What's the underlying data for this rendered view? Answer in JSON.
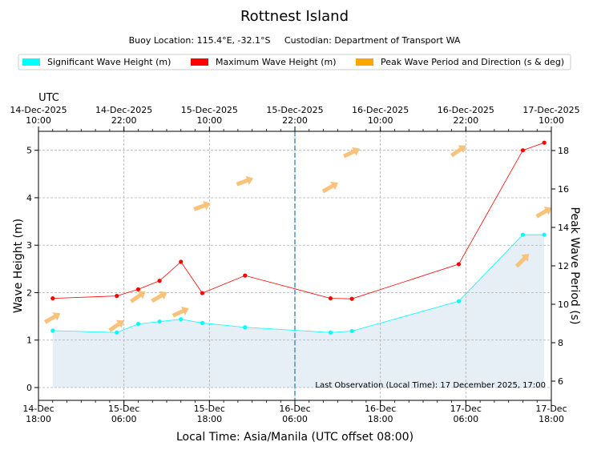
{
  "chart_data": {
    "type": "line",
    "title": "Rottnest Island",
    "subtitle": "Buoy Location: 115.4°E, -32.1°S     Custodian: Department of Transport WA",
    "legend": {
      "placement": "top",
      "entries": [
        {
          "label": "Significant Wave Height (m)",
          "color": "#00ffff"
        },
        {
          "label": "Maximum Wave Height (m)",
          "color": "#ff0000"
        },
        {
          "label": "Peak Wave Period and Direction (s & deg)",
          "color": "#ffa500"
        }
      ]
    },
    "xlabel": "Local Time: Asia/Manila (UTC offset 08:00)",
    "ylabel": "Wave Height (m)",
    "y2label": "Peak Wave Period (s)",
    "top_axis_label": "UTC",
    "ylim": [
      -0.27,
      5.4
    ],
    "y2lim": [
      5.0,
      19.0
    ],
    "x_range_hours": [
      0,
      72
    ],
    "yticks": [
      0,
      1,
      2,
      3,
      4,
      5
    ],
    "y2ticks": [
      6,
      8,
      10,
      12,
      14,
      16,
      18
    ],
    "xticks": [
      {
        "t": 0,
        "label": "14-Dec\n18:00"
      },
      {
        "t": 12,
        "label": "15-Dec\n06:00"
      },
      {
        "t": 24,
        "label": "15-Dec\n18:00"
      },
      {
        "t": 36,
        "label": "16-Dec\n06:00"
      },
      {
        "t": 48,
        "label": "16-Dec\n18:00"
      },
      {
        "t": 60,
        "label": "17-Dec\n06:00"
      },
      {
        "t": 72,
        "label": "17-Dec\n18:00"
      }
    ],
    "top_xticks": [
      {
        "t": 0,
        "label": "14-Dec-2025\n10:00"
      },
      {
        "t": 12,
        "label": "14-Dec-2025\n22:00"
      },
      {
        "t": 24,
        "label": "15-Dec-2025\n10:00"
      },
      {
        "t": 36,
        "label": "15-Dec-2025\n22:00"
      },
      {
        "t": 48,
        "label": "16-Dec-2025\n10:00"
      },
      {
        "t": 60,
        "label": "16-Dec-2025\n22:00"
      },
      {
        "t": 72,
        "label": "17-Dec-2025\n10:00"
      }
    ],
    "current_time_line_t": 36,
    "grid": true,
    "annotation": "Last Observation (Local Time): 17 December 2025, 17:00",
    "series": [
      {
        "name": "Significant Wave Height (m)",
        "color": "#00ffff",
        "filled": true,
        "fill_color": "#e6eef6",
        "t": [
          2,
          11,
          14,
          17,
          20,
          23,
          29,
          41,
          44,
          59,
          68,
          71
        ],
        "values": [
          1.2,
          1.16,
          1.34,
          1.39,
          1.44,
          1.36,
          1.27,
          1.16,
          1.19,
          1.82,
          3.22,
          3.22
        ]
      },
      {
        "name": "Maximum Wave Height (m)",
        "color": "#ff0000",
        "t": [
          2,
          11,
          14,
          17,
          20,
          23,
          29,
          41,
          44,
          59,
          68,
          71
        ],
        "values": [
          1.88,
          1.93,
          2.07,
          2.25,
          2.65,
          1.99,
          2.36,
          1.88,
          1.87,
          2.6,
          5.0,
          5.16
        ]
      },
      {
        "name": "Peak Wave Period and Direction (s & deg)",
        "color": "#ffa500",
        "t": [
          2,
          11,
          14,
          17,
          20,
          23,
          29,
          41,
          44,
          59,
          68,
          71
        ],
        "period_s": [
          9.3,
          8.9,
          10.4,
          10.4,
          9.6,
          15.1,
          16.4,
          16.1,
          17.9,
          18.0,
          12.3,
          14.8
        ],
        "direction_deg": [
          240,
          235,
          235,
          240,
          245,
          250,
          250,
          240,
          245,
          235,
          225,
          240
        ]
      }
    ]
  }
}
